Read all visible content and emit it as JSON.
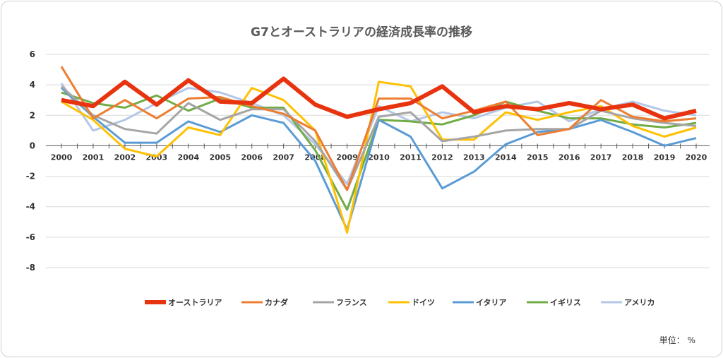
{
  "chart_data": {
    "type": "line",
    "title": "G7とオーストラリアの経済成長率の推移",
    "unit_label": "単位： %",
    "x": [
      "2000",
      "2001",
      "2002",
      "2003",
      "2004",
      "2005",
      "2006",
      "2007",
      "2008",
      "2009",
      "2010",
      "2011",
      "2012",
      "2013",
      "2014",
      "2015",
      "2016",
      "2017",
      "2018",
      "2019",
      "2020"
    ],
    "ylim": [
      -8,
      6
    ],
    "yticks": [
      6,
      4,
      2,
      0,
      -2,
      -4,
      -6,
      -8
    ],
    "grid": true,
    "legend": "bottom",
    "series": [
      {
        "name": "オーストラリア",
        "color": "#e8330f",
        "values": [
          3.0,
          2.6,
          4.2,
          2.7,
          4.3,
          2.9,
          2.8,
          4.4,
          2.7,
          1.9,
          2.4,
          2.8,
          3.9,
          2.2,
          2.6,
          2.4,
          2.8,
          2.4,
          2.7,
          1.8,
          2.3
        ]
      },
      {
        "name": "カナダ",
        "color": "#ed7d31",
        "values": [
          5.2,
          1.8,
          3.0,
          1.8,
          3.1,
          3.2,
          2.6,
          2.1,
          1.0,
          -2.9,
          3.1,
          3.1,
          1.8,
          2.3,
          2.9,
          0.7,
          1.1,
          3.0,
          1.9,
          1.6,
          1.8
        ]
      },
      {
        "name": "フランス",
        "color": "#a5a5a5",
        "values": [
          3.9,
          2.0,
          1.1,
          0.8,
          2.8,
          1.7,
          2.4,
          2.4,
          0.3,
          -2.9,
          1.9,
          2.2,
          0.3,
          0.6,
          1.0,
          1.1,
          1.1,
          2.3,
          1.8,
          1.5,
          1.3
        ]
      },
      {
        "name": "ドイツ",
        "color": "#ffc000",
        "values": [
          2.9,
          1.7,
          -0.2,
          -0.7,
          1.2,
          0.7,
          3.8,
          3.0,
          1.0,
          -5.7,
          4.2,
          3.9,
          0.4,
          0.4,
          2.2,
          1.7,
          2.2,
          2.6,
          1.3,
          0.6,
          1.2
        ]
      },
      {
        "name": "イタリア",
        "color": "#5b9bd5",
        "values": [
          3.8,
          1.9,
          0.2,
          0.2,
          1.6,
          0.9,
          2.0,
          1.5,
          -1.0,
          -5.5,
          1.7,
          0.6,
          -2.8,
          -1.7,
          0.1,
          0.9,
          1.1,
          1.7,
          0.9,
          0.0,
          0.5
        ]
      },
      {
        "name": "イギリス",
        "color": "#70ad47",
        "values": [
          3.5,
          2.8,
          2.5,
          3.3,
          2.3,
          3.1,
          2.5,
          2.5,
          -0.3,
          -4.2,
          1.7,
          1.6,
          1.4,
          2.0,
          2.9,
          2.3,
          1.8,
          1.8,
          1.4,
          1.2,
          1.5
        ]
      },
      {
        "name": "アメリカ",
        "color": "#b4c7e7",
        "values": [
          4.1,
          1.0,
          1.7,
          2.8,
          3.8,
          3.5,
          2.8,
          2.0,
          0.1,
          -2.5,
          2.6,
          1.6,
          2.2,
          1.8,
          2.5,
          2.9,
          1.6,
          2.4,
          2.9,
          2.3,
          2.0
        ]
      }
    ]
  }
}
